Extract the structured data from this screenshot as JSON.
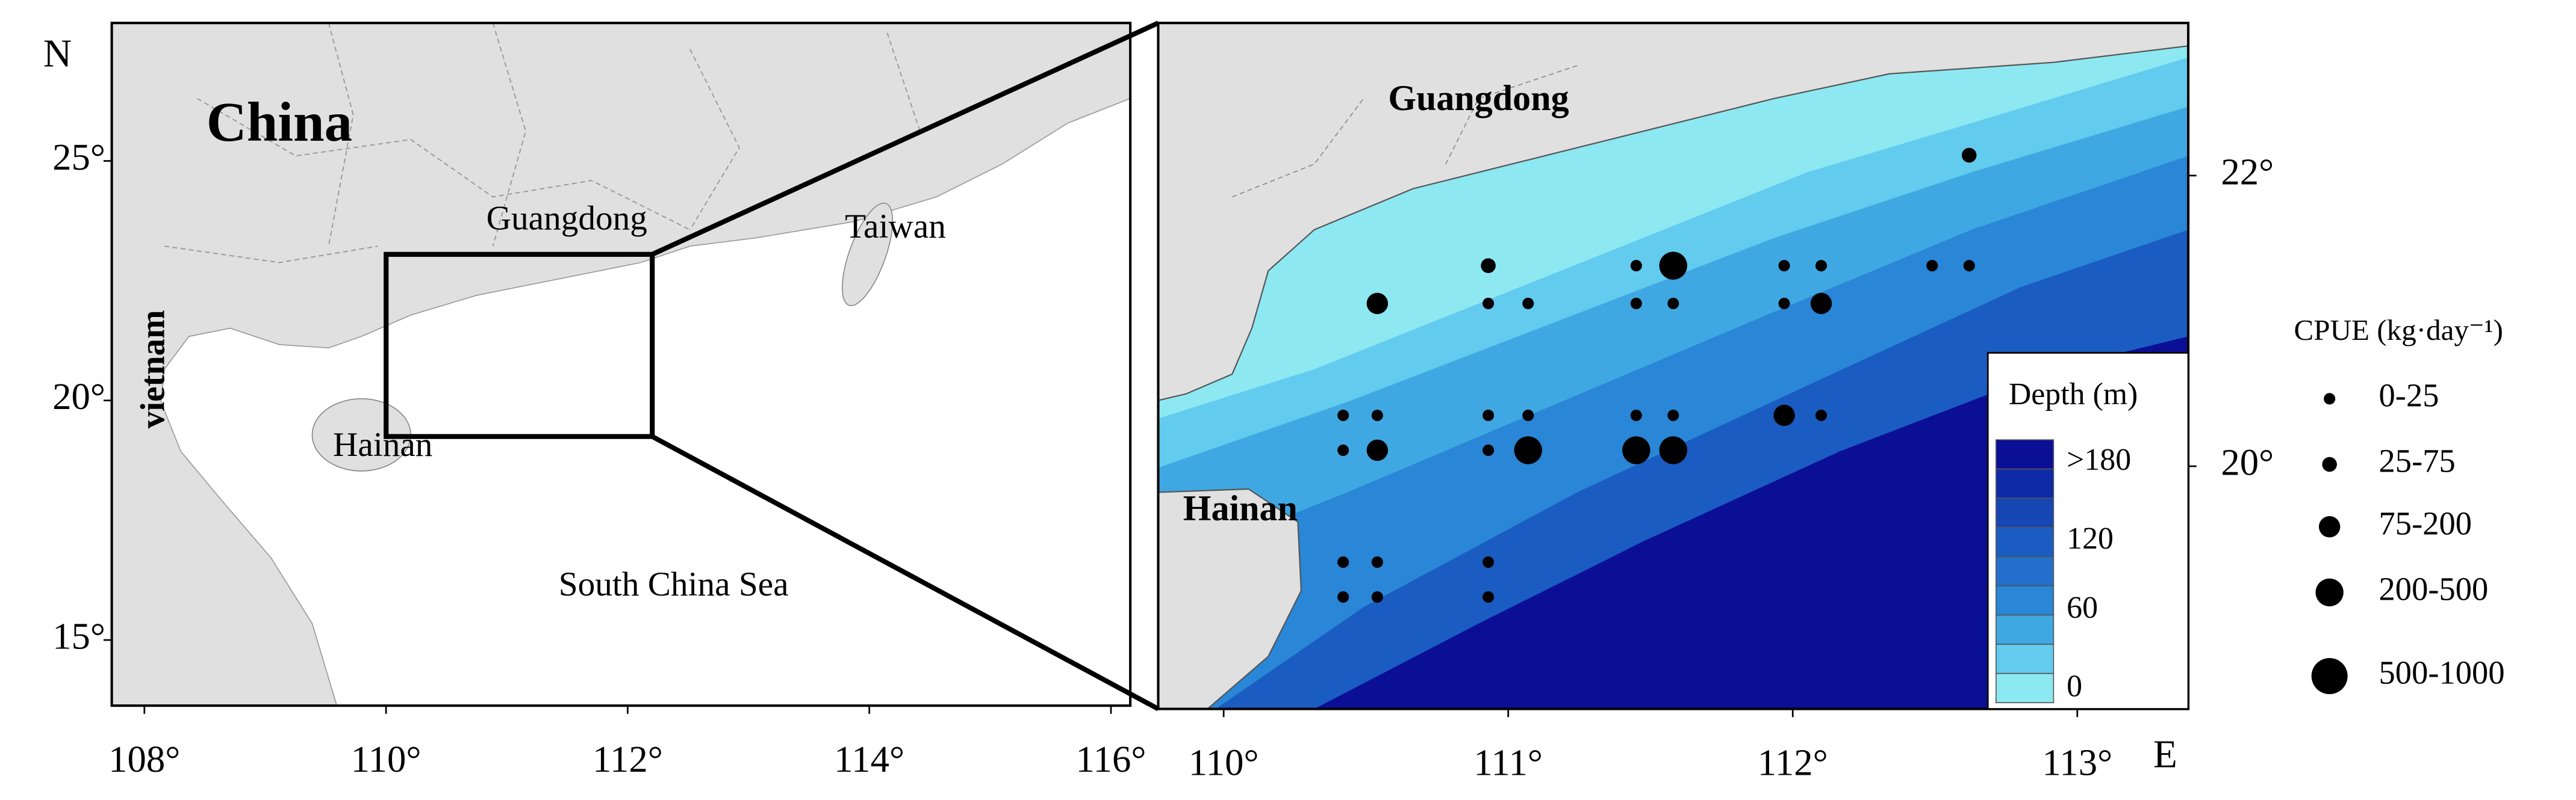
{
  "left_map": {
    "north": "N",
    "labels": {
      "china": "China",
      "guangdong": "Guangdong",
      "taiwan": "Taiwan",
      "vietnam": "vietnam",
      "hainan": "Hainan",
      "sea": "South China Sea"
    },
    "xlim": [
      107.73,
      116.16
    ],
    "ylim": [
      13.63,
      27.88
    ],
    "xticks": [
      {
        "value": 108,
        "label": "108°"
      },
      {
        "value": 110,
        "label": "110°"
      },
      {
        "value": 112,
        "label": "112°"
      },
      {
        "value": 114,
        "label": "114°"
      },
      {
        "value": 116,
        "label": "116°"
      }
    ],
    "yticks": [
      {
        "value": 15,
        "label": "15°"
      },
      {
        "value": 20,
        "label": "20°"
      },
      {
        "value": 25,
        "label": "25°"
      }
    ]
  },
  "right_map": {
    "east": "E",
    "labels": {
      "guangdong": "Guangdong",
      "hainan": "Hainan"
    },
    "xlim": [
      109.77,
      113.39
    ],
    "ylim": [
      18.33,
      23.05
    ],
    "xticks": [
      {
        "value": 110,
        "label": "110°"
      },
      {
        "value": 111,
        "label": "111°"
      },
      {
        "value": 112,
        "label": "112°"
      },
      {
        "value": 113,
        "label": "113°"
      }
    ],
    "yticks": [
      {
        "value": 20,
        "label": "20°"
      },
      {
        "value": 22,
        "label": "22°"
      }
    ],
    "stations": [
      {
        "lon": 112.62,
        "lat": 22.14,
        "class": 1
      },
      {
        "lon": 110.54,
        "lat": 21.12,
        "class": 2
      },
      {
        "lon": 110.93,
        "lat": 21.38,
        "class": 1
      },
      {
        "lon": 110.93,
        "lat": 21.12,
        "class": 0
      },
      {
        "lon": 111.07,
        "lat": 21.12,
        "class": 0
      },
      {
        "lon": 111.45,
        "lat": 21.38,
        "class": 0
      },
      {
        "lon": 111.58,
        "lat": 21.38,
        "class": 3
      },
      {
        "lon": 111.45,
        "lat": 21.12,
        "class": 0
      },
      {
        "lon": 111.58,
        "lat": 21.12,
        "class": 0
      },
      {
        "lon": 111.97,
        "lat": 21.38,
        "class": 0
      },
      {
        "lon": 112.1,
        "lat": 21.38,
        "class": 0
      },
      {
        "lon": 111.97,
        "lat": 21.12,
        "class": 0
      },
      {
        "lon": 112.1,
        "lat": 21.12,
        "class": 2
      },
      {
        "lon": 112.49,
        "lat": 21.38,
        "class": 0
      },
      {
        "lon": 112.62,
        "lat": 21.38,
        "class": 0
      },
      {
        "lon": 110.42,
        "lat": 20.35,
        "class": 0
      },
      {
        "lon": 110.54,
        "lat": 20.35,
        "class": 0
      },
      {
        "lon": 110.42,
        "lat": 20.11,
        "class": 0
      },
      {
        "lon": 110.54,
        "lat": 20.11,
        "class": 2
      },
      {
        "lon": 110.93,
        "lat": 20.35,
        "class": 0
      },
      {
        "lon": 111.07,
        "lat": 20.35,
        "class": 0
      },
      {
        "lon": 110.93,
        "lat": 20.11,
        "class": 0
      },
      {
        "lon": 111.07,
        "lat": 20.11,
        "class": 3
      },
      {
        "lon": 111.45,
        "lat": 20.35,
        "class": 0
      },
      {
        "lon": 111.58,
        "lat": 20.35,
        "class": 0
      },
      {
        "lon": 111.45,
        "lat": 20.11,
        "class": 3
      },
      {
        "lon": 111.58,
        "lat": 20.11,
        "class": 3
      },
      {
        "lon": 111.97,
        "lat": 20.35,
        "class": 2
      },
      {
        "lon": 112.1,
        "lat": 20.35,
        "class": 0
      },
      {
        "lon": 110.42,
        "lat": 19.34,
        "class": 0
      },
      {
        "lon": 110.54,
        "lat": 19.34,
        "class": 0
      },
      {
        "lon": 110.42,
        "lat": 19.1,
        "class": 0
      },
      {
        "lon": 110.54,
        "lat": 19.1,
        "class": 0
      },
      {
        "lon": 110.93,
        "lat": 19.34,
        "class": 0
      },
      {
        "lon": 110.93,
        "lat": 19.1,
        "class": 0
      }
    ]
  },
  "depth_legend": {
    "title": "Depth (m)",
    "labels": [
      ">180",
      "120",
      "60",
      "0"
    ]
  },
  "cpue_legend": {
    "title": "CPUE (kg·day⁻¹)",
    "classes": [
      "0-25",
      "25-75",
      "75-200",
      "200-500",
      "500-1000"
    ]
  }
}
